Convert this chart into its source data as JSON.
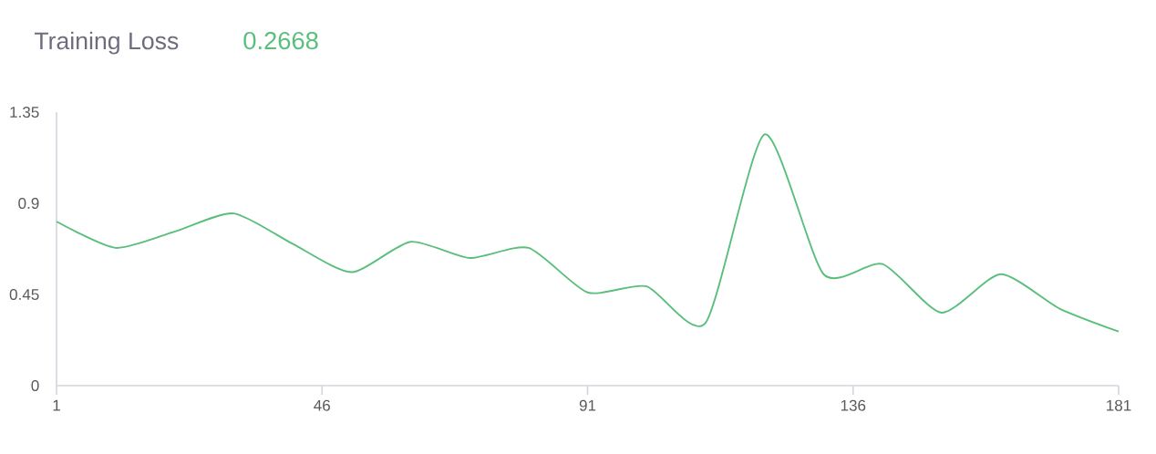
{
  "chart_data": {
    "type": "line",
    "title": "Training Loss",
    "subtitle": "0.2668",
    "x": [
      1,
      11,
      21,
      31,
      41,
      51,
      61,
      71,
      81,
      91,
      101,
      111,
      121,
      131,
      141,
      151,
      161,
      171,
      181
    ],
    "values": [
      0.81,
      0.68,
      0.76,
      0.85,
      0.7,
      0.56,
      0.71,
      0.63,
      0.68,
      0.46,
      0.49,
      0.31,
      1.24,
      0.55,
      0.6,
      0.36,
      0.55,
      0.38,
      0.2668
    ],
    "color": "#5abf7d",
    "xlim": [
      1,
      181
    ],
    "ylim": [
      0,
      1.35
    ],
    "xticks": [
      1,
      46,
      91,
      136,
      181
    ],
    "yticks": [
      0,
      0.45,
      0.9,
      1.35
    ]
  }
}
